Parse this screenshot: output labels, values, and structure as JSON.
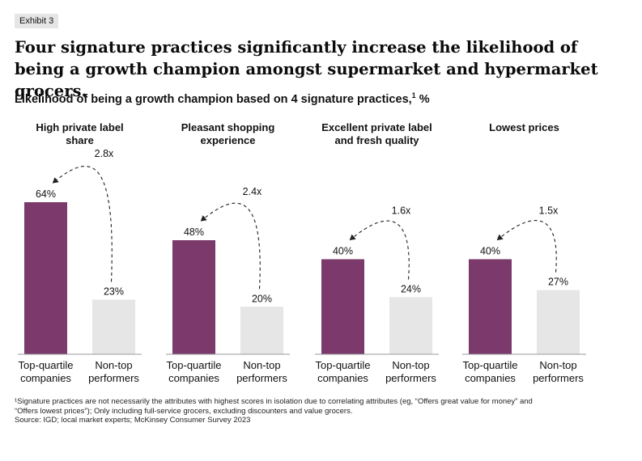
{
  "exhibit_label": "Exhibit 3",
  "headline": "Four signature practices significantly increase the likelihood of being a growth champion amongst supermarket and hypermarket grocers.",
  "subtitle": {
    "text": "Likelihood of being a growth champion based on 4 signature practices,",
    "sup": "1",
    "unit": " %"
  },
  "colors": {
    "top_quartile": "#7b3a6b",
    "non_top": "#e6e6e6"
  },
  "chart_data": {
    "type": "bar",
    "title": "Likelihood of being a growth champion based on 4 signature practices, %",
    "ylim": [
      0,
      64
    ],
    "grid": false,
    "category_labels": [
      "Top-quartile companies",
      "Non-top performers"
    ],
    "panels": [
      {
        "title": [
          "High private label",
          "share"
        ],
        "values": [
          64,
          23
        ],
        "labels": [
          "64%",
          "23%"
        ],
        "multiplier": "2.8x"
      },
      {
        "title": [
          "Pleasant shopping",
          "experience"
        ],
        "values": [
          48,
          20
        ],
        "labels": [
          "48%",
          "20%"
        ],
        "multiplier": "2.4x"
      },
      {
        "title": [
          "Excellent private label",
          "and fresh quality"
        ],
        "values": [
          40,
          24
        ],
        "labels": [
          "40%",
          "24%"
        ],
        "multiplier": "1.6x"
      },
      {
        "title": [
          "Lowest prices"
        ],
        "values": [
          40,
          27
        ],
        "labels": [
          "40%",
          "27%"
        ],
        "multiplier": "1.5x"
      }
    ]
  },
  "footnote": {
    "lines": [
      "¹Signature practices are not necessarily the attributes with highest scores in isolation due to correlating attributes (eg, “Offers great value for money” and",
      "“Offers lowest prices”); Only including full-service grocers, excluding discounters and value grocers."
    ],
    "source": "Source: IGD; local market experts; McKinsey Consumer Survey 2023"
  }
}
